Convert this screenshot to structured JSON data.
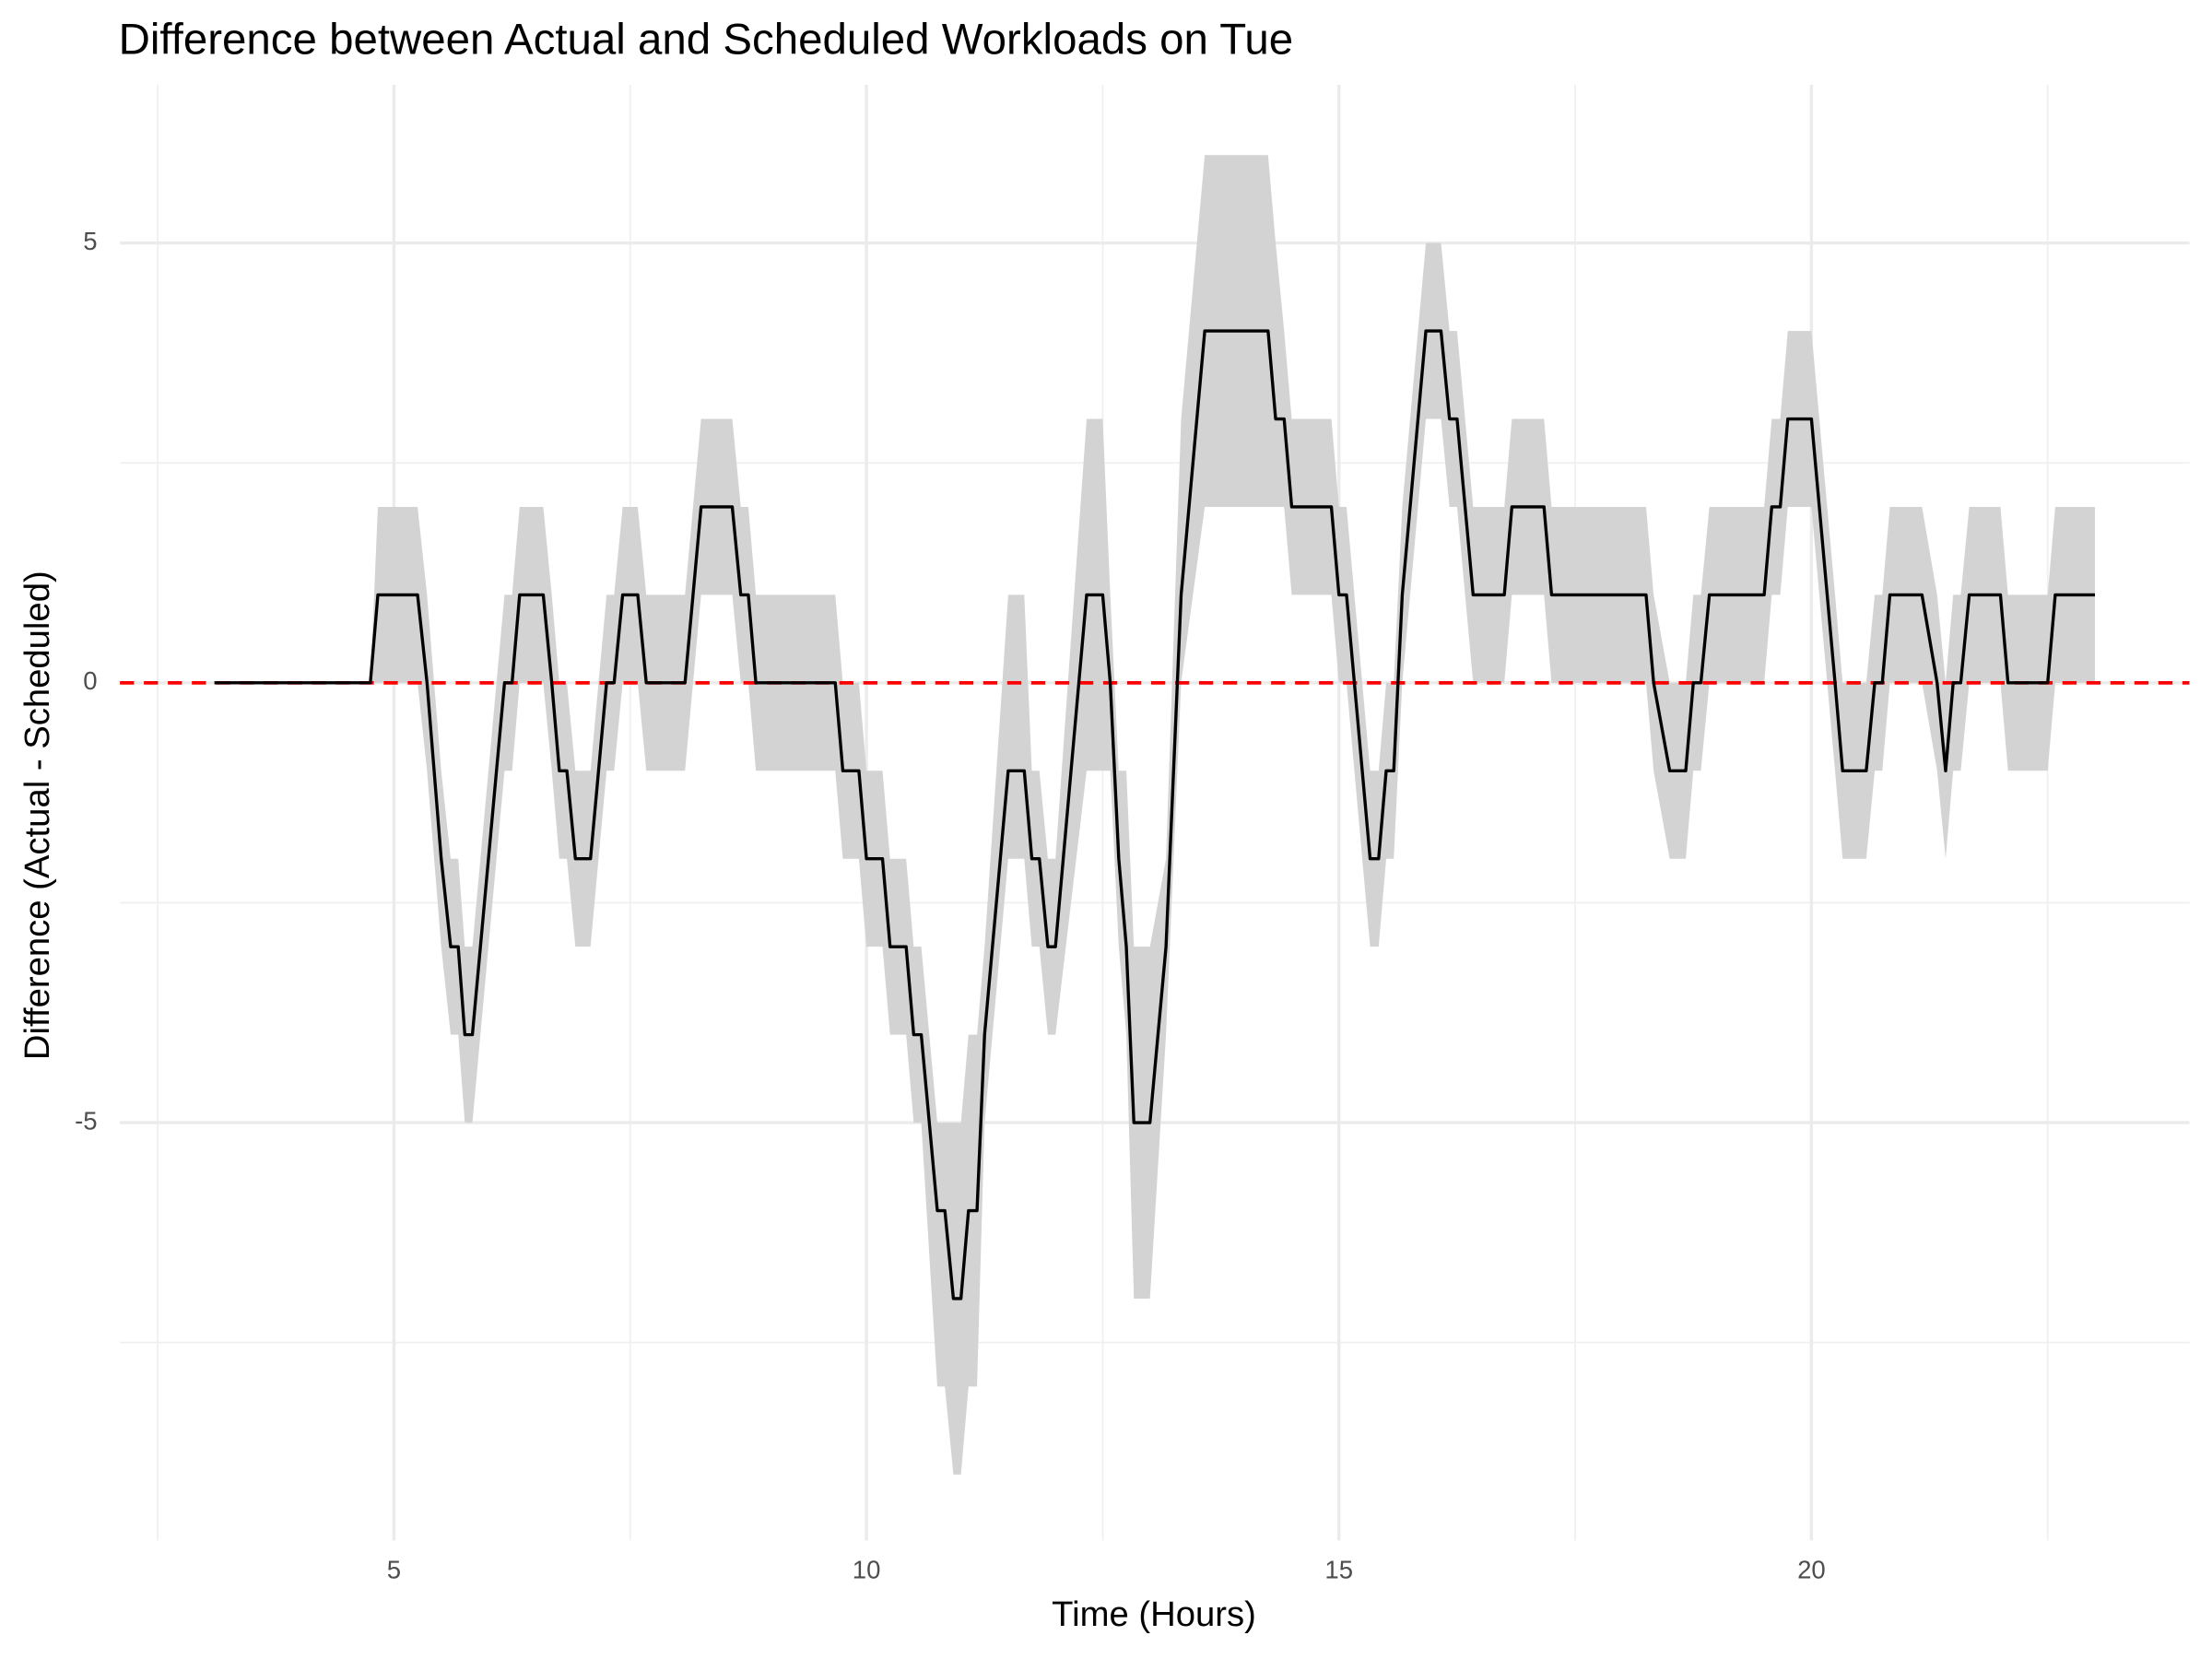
{
  "chart_data": {
    "type": "ribbon-line",
    "title": "Difference between Actual and Scheduled Workloads on Tue",
    "x_label": "Time (Hours)",
    "y_label": "Difference (Actual - Scheduled)",
    "x": [
      3.1,
      4.75,
      4.83,
      5.25,
      5.35,
      5.5,
      5.6,
      5.68,
      5.75,
      5.83,
      6.17,
      6.25,
      6.33,
      6.58,
      6.67,
      6.75,
      6.83,
      6.92,
      7.08,
      7.25,
      7.33,
      7.42,
      7.58,
      7.67,
      8.08,
      8.25,
      8.58,
      8.67,
      8.75,
      8.83,
      9.67,
      9.75,
      9.92,
      10,
      10.17,
      10.25,
      10.42,
      10.5,
      10.58,
      10.75,
      10.83,
      10.92,
      11,
      11.08,
      11.17,
      11.25,
      11.5,
      11.67,
      11.75,
      11.83,
      11.92,
      12,
      12.33,
      12.5,
      12.58,
      12.67,
      12.75,
      12.83,
      13,
      13.17,
      13.33,
      13.58,
      14.25,
      14.33,
      14.42,
      14.5,
      14.92,
      15,
      15.08,
      15.33,
      15.42,
      15.5,
      15.58,
      15.67,
      15.92,
      16.08,
      16.17,
      16.25,
      16.42,
      16.75,
      16.83,
      17.17,
      17.25,
      18.25,
      18.33,
      18.5,
      18.67,
      18.75,
      18.83,
      18.92,
      19.5,
      19.58,
      19.67,
      19.75,
      20,
      20.25,
      20.33,
      20.58,
      20.67,
      20.75,
      20.83,
      21.17,
      21.33,
      21.42,
      21.5,
      21.58,
      21.67,
      22,
      22.08,
      22.5,
      22.58,
      23
    ],
    "values": [
      0,
      0,
      1,
      1,
      0,
      -2,
      -3,
      -3,
      -4,
      -4,
      0,
      0,
      1,
      1,
      0,
      -1,
      -1,
      -2,
      -2,
      0,
      0,
      1,
      1,
      0,
      0,
      2,
      2,
      1,
      1,
      0,
      0,
      -1,
      -1,
      -2,
      -2,
      -3,
      -3,
      -4,
      -4,
      -6,
      -6,
      -7,
      -7,
      -6,
      -6,
      -4,
      -1,
      -1,
      -2,
      -2,
      -3,
      -3,
      1,
      1,
      0,
      -2,
      -3,
      -5,
      -5,
      -3,
      1,
      4,
      4,
      3,
      3,
      2,
      2,
      1,
      1,
      -2,
      -2,
      -1,
      -1,
      1,
      4,
      4,
      3,
      3,
      1,
      1,
      2,
      2,
      1,
      1,
      0,
      -1,
      -1,
      0,
      0,
      1,
      1,
      2,
      2,
      3,
      3,
      0,
      -1,
      -1,
      0,
      0,
      1,
      1,
      0,
      -1,
      0,
      0,
      1,
      1,
      0,
      0,
      1,
      1
    ],
    "lower": [
      0,
      0,
      0,
      0,
      -1,
      -3,
      -4,
      -4,
      -5,
      -5,
      -1,
      -1,
      0,
      0,
      -1,
      -2,
      -2,
      -3,
      -3,
      -1,
      -1,
      0,
      0,
      -1,
      -1,
      1,
      1,
      0,
      0,
      -1,
      -1,
      -2,
      -2,
      -3,
      -3,
      -4,
      -4,
      -5,
      -5,
      -8,
      -8,
      -9,
      -9,
      -8,
      -8,
      -5,
      -2,
      -2,
      -3,
      -3,
      -4,
      -4,
      -1,
      -1,
      -1,
      -3,
      -4,
      -7,
      -7,
      -4,
      0,
      2,
      2,
      2,
      2,
      1,
      1,
      0,
      0,
      -3,
      -3,
      -2,
      -2,
      0,
      3,
      3,
      2,
      2,
      0,
      0,
      1,
      1,
      0,
      0,
      -1,
      -2,
      -2,
      -1,
      -1,
      0,
      0,
      1,
      1,
      2,
      2,
      -1,
      -2,
      -2,
      -1,
      -1,
      0,
      0,
      -1,
      -2,
      -1,
      -1,
      0,
      0,
      -1,
      -1,
      0,
      0
    ],
    "upper": [
      0,
      0,
      2,
      2,
      1,
      -1,
      -2,
      -2,
      -3,
      -3,
      1,
      1,
      2,
      2,
      1,
      0,
      0,
      -1,
      -1,
      1,
      1,
      2,
      2,
      1,
      1,
      3,
      3,
      2,
      2,
      1,
      1,
      0,
      0,
      -1,
      -1,
      -2,
      -2,
      -3,
      -3,
      -5,
      -5,
      -5,
      -5,
      -4,
      -4,
      -3,
      1,
      1,
      -1,
      -1,
      -2,
      -2,
      3,
      3,
      1,
      -1,
      -1,
      -3,
      -3,
      -2,
      3,
      6,
      6,
      5,
      4,
      3,
      3,
      2,
      2,
      -1,
      -1,
      0,
      0,
      2,
      5,
      5,
      4,
      4,
      2,
      2,
      3,
      3,
      2,
      2,
      1,
      0,
      0,
      1,
      1,
      2,
      2,
      3,
      3,
      4,
      4,
      1,
      0,
      0,
      1,
      1,
      2,
      2,
      1,
      0,
      1,
      1,
      2,
      2,
      1,
      1,
      2,
      2
    ],
    "color": "#000000",
    "ribbon_color": "#d3d3d3",
    "reference_line": {
      "value": 0,
      "color": "#ff0000"
    },
    "xlim": [
      2.1,
      24
    ],
    "ylim": [
      -9.75,
      6.8
    ],
    "xticks": [
      5,
      10,
      15,
      20
    ],
    "yticks": [
      -5,
      0,
      5
    ],
    "x_minor_ticks": [
      2.5,
      7.5,
      12.5,
      17.5,
      22.5
    ],
    "y_minor_ticks": [
      -7.5,
      -2.5,
      2.5
    ],
    "grid": true
  }
}
